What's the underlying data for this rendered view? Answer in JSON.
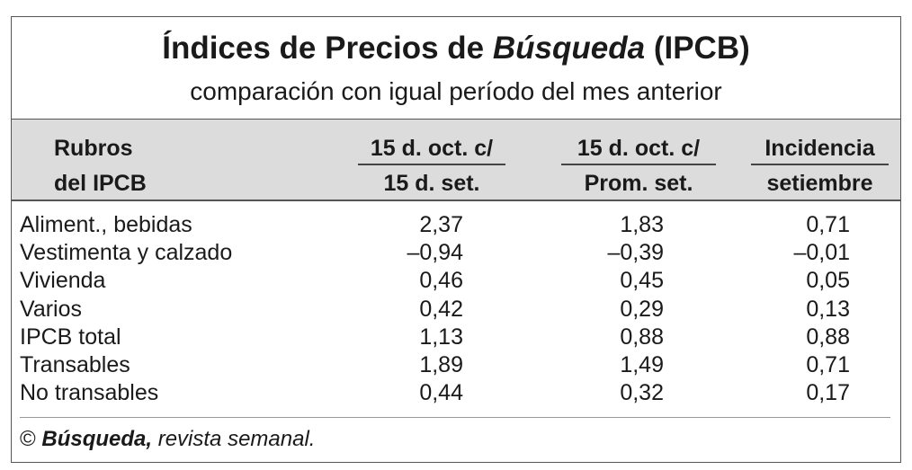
{
  "header": {
    "title": [
      "Índices de Precios de",
      "Búsqueda",
      "(IPCB)"
    ],
    "subtitle": "comparación con igual período del mes anterior"
  },
  "table": {
    "columns": [
      [
        "Rubros",
        "del IPCB"
      ],
      [
        "15 d. oct. c/",
        "15 d. set."
      ],
      [
        "15 d. oct. c/",
        "Prom. set."
      ],
      [
        "Incidencia",
        "setiembre"
      ]
    ],
    "rows": [
      [
        "Aliment., bebidas",
        "2,37",
        "1,83",
        "0,71"
      ],
      [
        "Vestimenta y calzado",
        "–0,94",
        "–0,39",
        "–0,01"
      ],
      [
        "Vivienda",
        "0,46",
        "0,45",
        "0,05"
      ],
      [
        "Varios",
        "0,42",
        "0,29",
        "0,13"
      ],
      [
        "IPCB total",
        "1,13",
        "0,88",
        "0,88"
      ],
      [
        "Transables",
        "1,89",
        "1,49",
        "0,71"
      ],
      [
        "No transables",
        "0,44",
        "0,32",
        "0,17"
      ]
    ]
  },
  "footer": [
    "©",
    "Búsqueda,",
    "revista semanal."
  ]
}
